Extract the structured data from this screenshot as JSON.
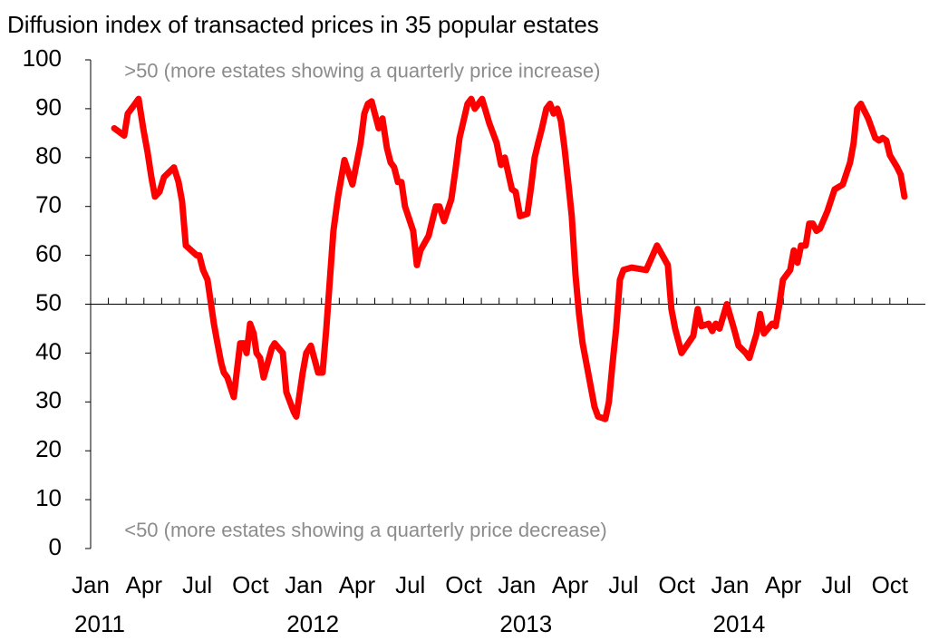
{
  "chart_data": {
    "type": "line",
    "title": "Diffusion index of transacted prices in 35 popular estates",
    "annotations": [
      {
        "text": ">50 (more estates showing a quarterly price increase)",
        "x": 1.9,
        "y": 97.5
      },
      {
        "text": "<50 (more estates showing a quarterly price decrease)",
        "x": 1.9,
        "y": 3.5
      }
    ],
    "hline": 50,
    "xlim": [
      0,
      47
    ],
    "xticks": [
      {
        "value": 0,
        "label": "Jan"
      },
      {
        "value": 3,
        "label": "Apr"
      },
      {
        "value": 6,
        "label": "Jul"
      },
      {
        "value": 9,
        "label": "Oct"
      },
      {
        "value": 12,
        "label": "Jan"
      },
      {
        "value": 15,
        "label": "Apr"
      },
      {
        "value": 18,
        "label": "Jul"
      },
      {
        "value": 21,
        "label": "Oct"
      },
      {
        "value": 24,
        "label": "Jan"
      },
      {
        "value": 27,
        "label": "Apr"
      },
      {
        "value": 30,
        "label": "Jul"
      },
      {
        "value": 33,
        "label": "Oct"
      },
      {
        "value": 36,
        "label": "Jan"
      },
      {
        "value": 39,
        "label": "Apr"
      },
      {
        "value": 42,
        "label": "Jul"
      },
      {
        "value": 45,
        "label": "Oct"
      }
    ],
    "xyears": [
      {
        "value": 0,
        "label": "2011"
      },
      {
        "value": 12,
        "label": "2012"
      },
      {
        "value": 24,
        "label": "2013"
      },
      {
        "value": 36,
        "label": "2014"
      }
    ],
    "xminorticks": [
      1,
      2,
      3,
      4,
      5,
      6,
      7,
      8,
      9,
      10,
      11,
      12,
      13,
      14,
      15,
      16,
      17,
      18,
      19,
      20,
      21,
      22,
      23,
      24,
      25,
      26,
      27,
      28,
      29,
      30,
      31,
      32,
      33,
      34,
      35,
      36,
      37,
      38,
      39,
      40,
      41,
      42,
      43,
      44,
      45,
      46
    ],
    "ylim": [
      0,
      100
    ],
    "yticks": [
      0,
      10,
      20,
      30,
      40,
      50,
      60,
      70,
      80,
      90,
      100
    ],
    "x": [
      1.33,
      1.89,
      2.09,
      2.4,
      2.7,
      2.96,
      3.21,
      3.42,
      3.62,
      3.88,
      4.13,
      4.69,
      4.95,
      5.15,
      5.36,
      5.97,
      6.12,
      6.33,
      6.58,
      6.94,
      7.14,
      7.35,
      7.5,
      7.7,
      8.06,
      8.42,
      8.62,
      8.78,
      8.98,
      9.18,
      9.34,
      9.54,
      9.74,
      10.2,
      10.36,
      10.82,
      11.02,
      11.43,
      11.58,
      11.94,
      12.14,
      12.4,
      12.81,
      13.06,
      13.27,
      13.47,
      13.67,
      13.93,
      14.29,
      14.74,
      15.2,
      15.41,
      15.61,
      15.82,
      16.22,
      16.43,
      16.68,
      16.89,
      17.09,
      17.3,
      17.5,
      17.7,
      18.16,
      18.37,
      18.57,
      19.03,
      19.44,
      19.64,
      19.9,
      20.31,
      20.56,
      20.77,
      21.22,
      21.43,
      21.63,
      22.04,
      22.45,
      22.86,
      23.11,
      23.32,
      23.72,
      23.93,
      24.18,
      24.59,
      24.8,
      25.0,
      25.2,
      25.41,
      25.66,
      25.87,
      26.07,
      26.28,
      26.48,
      26.68,
      26.89,
      27.09,
      27.3,
      27.5,
      27.7,
      27.96,
      28.37,
      28.57,
      28.98,
      29.18,
      29.39,
      29.59,
      29.8,
      30.0,
      30.46,
      31.28,
      31.89,
      32.5,
      32.7,
      32.91,
      33.27,
      33.93,
      34.18,
      34.39,
      34.8,
      35.0,
      35.2,
      35.41,
      35.82,
      36.22,
      36.48,
      36.89,
      37.09,
      37.5,
      37.7,
      37.91,
      38.37,
      38.57,
      38.78,
      38.98,
      39.39,
      39.59,
      39.8,
      40.0,
      40.26,
      40.46,
      40.66,
      40.87,
      41.07,
      41.48,
      41.89,
      42.35,
      42.76,
      42.96,
      43.16,
      43.37,
      43.78,
      44.18,
      44.39,
      44.59,
      44.8,
      45.0,
      45.41,
      45.61,
      45.82
    ],
    "series": [
      {
        "name": "Diffusion index",
        "color": "#ff0000",
        "values": [
          86,
          84.5,
          89,
          90.5,
          92,
          86,
          81,
          76,
          72,
          73,
          76,
          78,
          75,
          71,
          62,
          60,
          60,
          57,
          55,
          46,
          42,
          38,
          36,
          35,
          31,
          42,
          42,
          40,
          46,
          44,
          40,
          39,
          35,
          41,
          42,
          40,
          32,
          28,
          27,
          36,
          40,
          41.5,
          36,
          36,
          45,
          55,
          65,
          72,
          79.5,
          74.5,
          83,
          89,
          91,
          91.5,
          86,
          88,
          82,
          79,
          78,
          75,
          75,
          70,
          65,
          58,
          61,
          64,
          70,
          70,
          67,
          71.5,
          78,
          84,
          91,
          92,
          90,
          92,
          87,
          83,
          78.5,
          80,
          73.5,
          73,
          68,
          68.5,
          74,
          80,
          83,
          86,
          90,
          91,
          89,
          90,
          87.5,
          82,
          75,
          68,
          56,
          48,
          42,
          37,
          29,
          27,
          26.5,
          30,
          38,
          45,
          55,
          57,
          57.5,
          57,
          62,
          58,
          49,
          45,
          40,
          43.5,
          49,
          45.5,
          46,
          44.5,
          46,
          45,
          50,
          45,
          41.5,
          40,
          39,
          44,
          48,
          44,
          46,
          45.5,
          50,
          55,
          57,
          61,
          58.5,
          62,
          62,
          66.5,
          66.5,
          65,
          65.5,
          69,
          73.5,
          74.5,
          79,
          83,
          90,
          91,
          88,
          84,
          83.5,
          84,
          83.5,
          80.5,
          78,
          76.5,
          72
        ]
      }
    ]
  }
}
